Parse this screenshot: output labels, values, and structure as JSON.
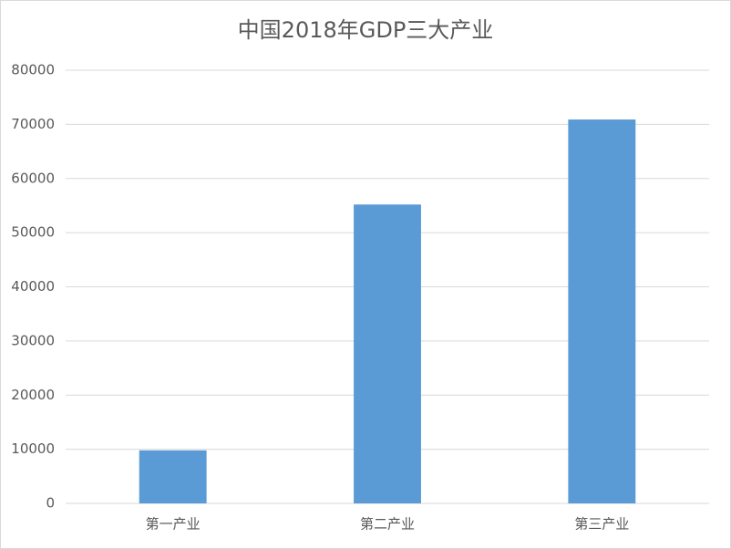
{
  "chart_data": {
    "type": "bar",
    "title": "中国2018年GDP三大产业",
    "categories": [
      "第一产业",
      "第二产业",
      "第三产业"
    ],
    "values": [
      9800,
      55200,
      70900
    ],
    "color": "#5b9bd5",
    "ylim": [
      0,
      80000
    ],
    "yticks": [
      0,
      10000,
      20000,
      30000,
      40000,
      50000,
      60000,
      70000,
      80000
    ],
    "grid": true
  }
}
